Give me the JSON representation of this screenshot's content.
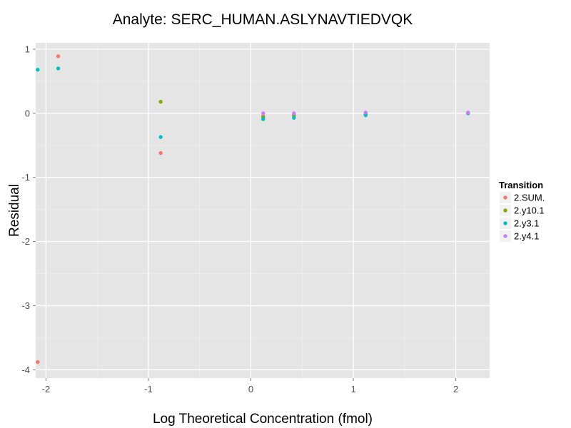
{
  "chart_data": {
    "type": "scatter",
    "title": "Analyte: SERC_HUMAN.ASLYNAVTIEDVQK",
    "xlabel": "Log Theoretical Concentration (fmol)",
    "ylabel": "Residual",
    "xlim": [
      -2.1,
      2.33
    ],
    "ylim": [
      -4.13,
      1.1
    ],
    "x_ticks": [
      -2,
      -1,
      0,
      1,
      2
    ],
    "x_tick_labels": [
      "-2",
      "-1",
      "0",
      "1",
      "2"
    ],
    "y_ticks": [
      1,
      0,
      -1,
      -2,
      -3,
      -4
    ],
    "y_tick_labels": [
      "1",
      "0",
      "-1",
      "-2",
      "-3",
      "-4"
    ],
    "grid": true,
    "legend": {
      "title": "Transition",
      "placement": "right"
    },
    "series": [
      {
        "name": "2.SUM.",
        "color": "#F8766D",
        "points": [
          {
            "x": -2.08,
            "y": -3.88
          },
          {
            "x": -1.88,
            "y": 0.89
          },
          {
            "x": -0.88,
            "y": -0.62
          },
          {
            "x": 0.12,
            "y": -0.05
          },
          {
            "x": 0.42,
            "y": -0.02
          },
          {
            "x": 1.12,
            "y": -0.01
          },
          {
            "x": 2.12,
            "y": 0.01
          }
        ]
      },
      {
        "name": "2.y10.1",
        "color": "#7CAE00",
        "points": [
          {
            "x": -0.88,
            "y": 0.18
          },
          {
            "x": 0.12,
            "y": -0.06
          },
          {
            "x": 0.42,
            "y": -0.04
          },
          {
            "x": 1.12,
            "y": -0.02
          },
          {
            "x": 2.12,
            "y": 0.0
          }
        ]
      },
      {
        "name": "2.y3.1",
        "color": "#00BFC4",
        "points": [
          {
            "x": -2.08,
            "y": 0.68
          },
          {
            "x": -1.88,
            "y": 0.7
          },
          {
            "x": -0.88,
            "y": -0.37
          },
          {
            "x": 0.12,
            "y": -0.09
          },
          {
            "x": 0.42,
            "y": -0.07
          },
          {
            "x": 1.12,
            "y": -0.03
          },
          {
            "x": 2.12,
            "y": 0.0
          }
        ]
      },
      {
        "name": "2.y4.1",
        "color": "#C77CFF",
        "points": [
          {
            "x": 0.12,
            "y": 0.0
          },
          {
            "x": 0.42,
            "y": 0.0
          },
          {
            "x": 1.12,
            "y": 0.01
          },
          {
            "x": 2.12,
            "y": 0.01
          }
        ]
      }
    ]
  }
}
